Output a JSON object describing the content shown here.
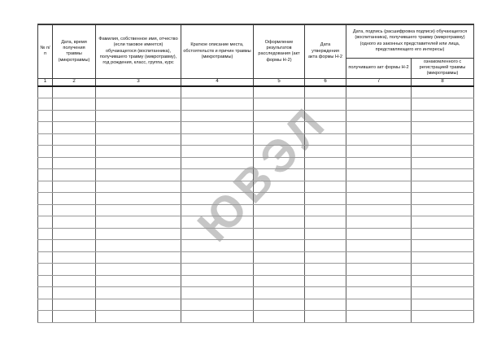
{
  "watermark": {
    "text": "ЮВЭЛ",
    "color": "#c6c6c6"
  },
  "table": {
    "headers": {
      "col1": "№ п/п",
      "col2": "Дата, время получения травмы (микротравмы)",
      "col3": "Фамилия, собственное имя, отчество (если таковое имеется) обучающегося (воспитанника), получившего травму (микротравму), год рождения, класс, группа, курс",
      "col4": "Краткое описание места, обстоятельств и причин травмы (микротравмы)",
      "col5": "Оформление результатов расследования (акт формы Н-2)",
      "col6": "Дата утверждения акта формы Н-2",
      "group78": "Дата, подпись (расшифровка подписи) обучающегося (воспитанника), получившего травму (микротравму) (одного из законных представителей или лица, представляющего его интересы)",
      "col7": "получившего акт формы Н-2",
      "col8": "ознакомленного с регистрацией травмы (микротравмы)"
    },
    "numbering": [
      "1",
      "2",
      "3",
      "4",
      "5",
      "6",
      "7",
      "8"
    ],
    "body_row_count": 20
  }
}
